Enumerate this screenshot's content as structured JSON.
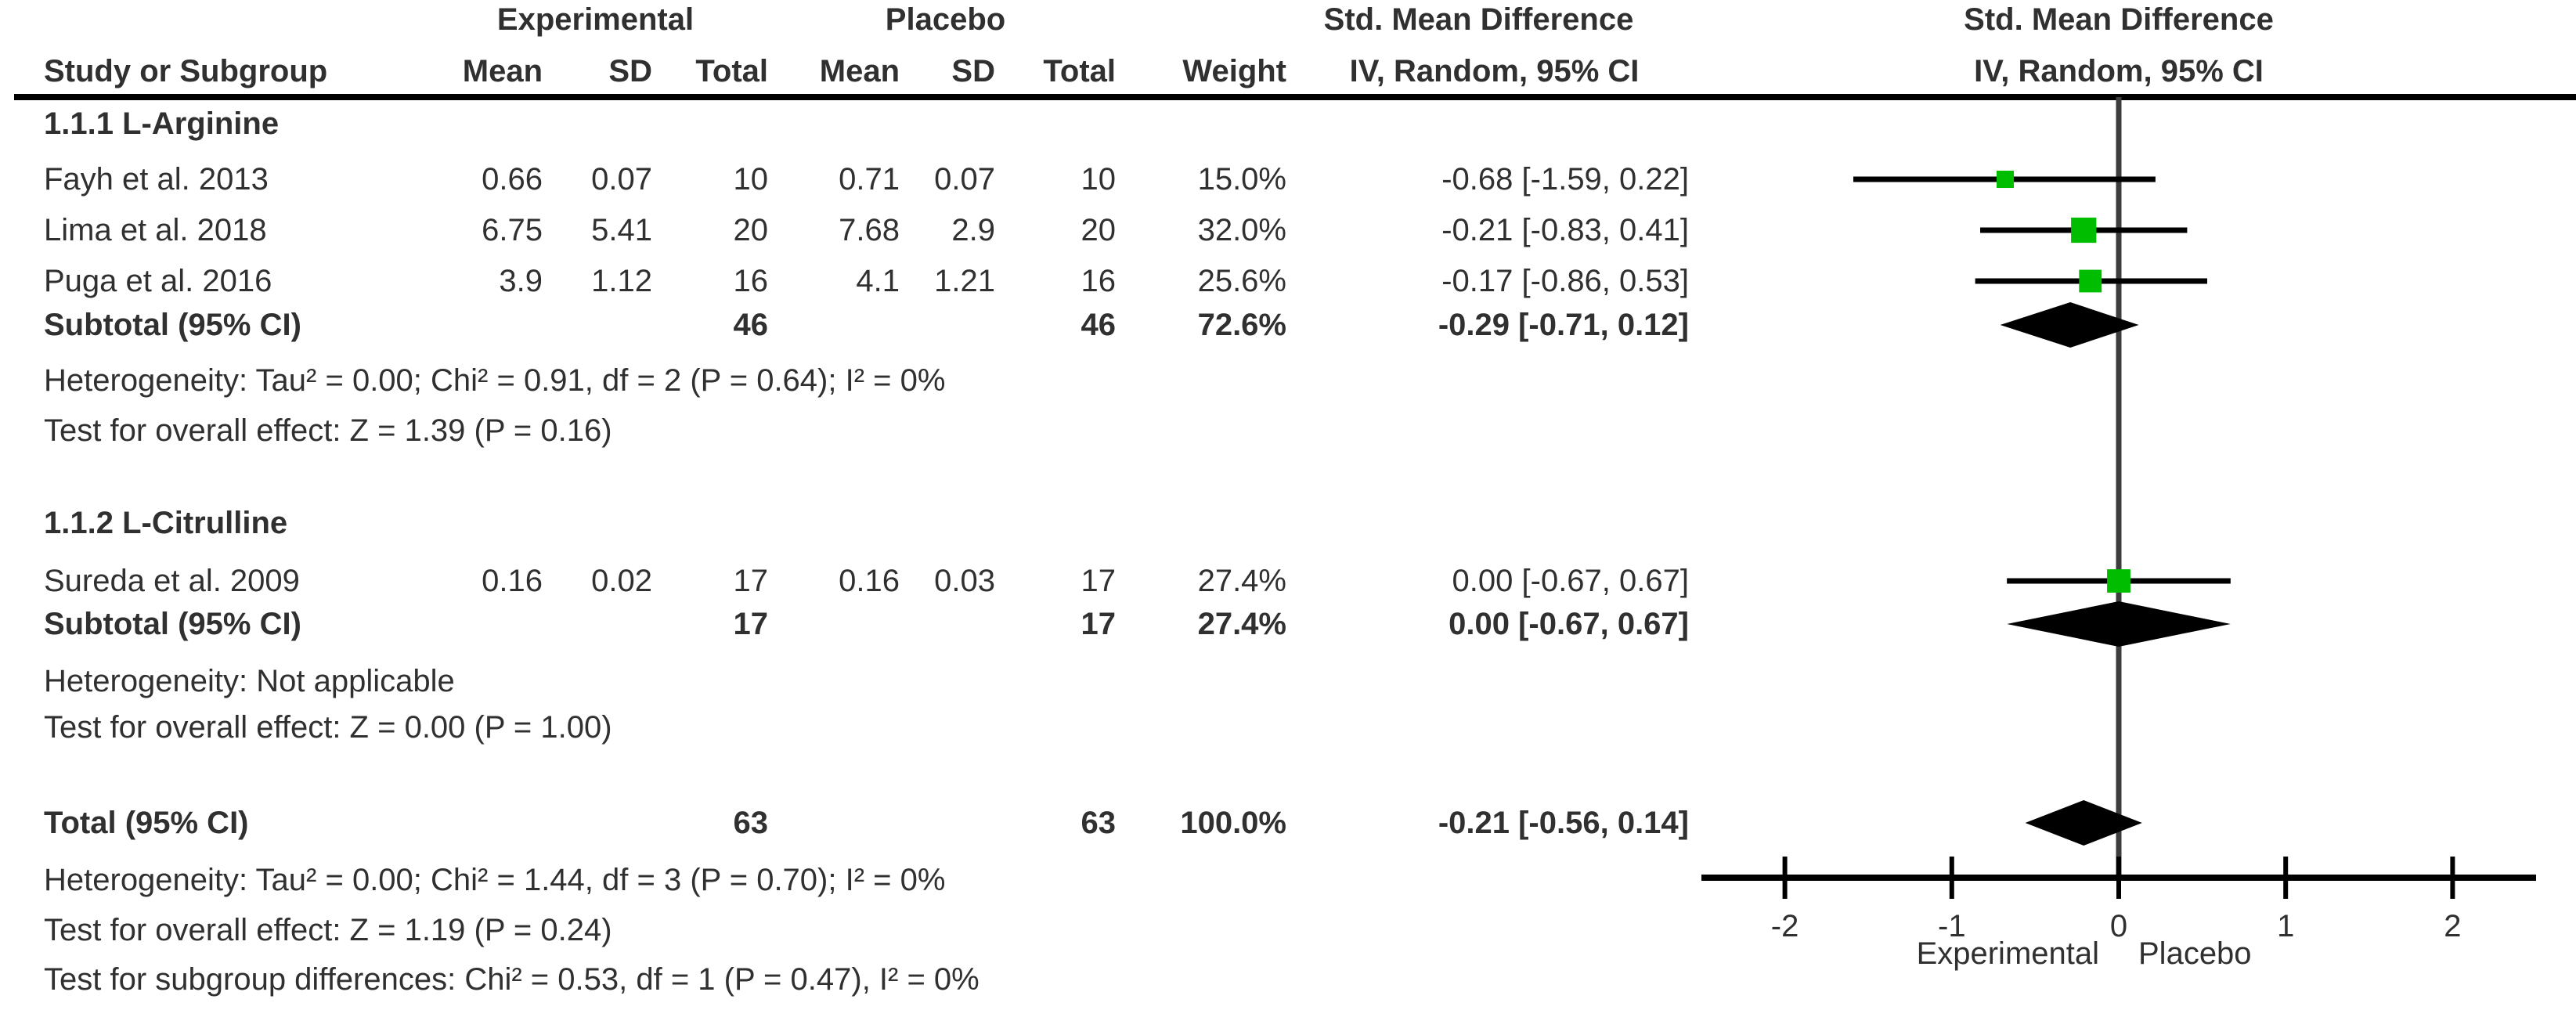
{
  "table": {
    "col_headers": {
      "group_experimental": "Experimental",
      "group_placebo": "Placebo",
      "smd_text_col": "Std. Mean Difference",
      "smd_plot_col": "Std. Mean Difference",
      "study": "Study or Subgroup",
      "mean1": "Mean",
      "sd1": "SD",
      "total1": "Total",
      "mean2": "Mean",
      "sd2": "SD",
      "total2": "Total",
      "weight": "Weight",
      "iv_text_col": "IV, Random, 95% CI",
      "iv_plot_col": "IV, Random, 95% CI"
    },
    "sections": [
      {
        "label": "1.1.1 L-Arginine",
        "studies": [
          {
            "name": "Fayh et al. 2013",
            "mean1": "0.66",
            "sd1": "0.07",
            "total1": "10",
            "mean2": "0.71",
            "sd2": "0.07",
            "total2": "10",
            "weight": "15.0%",
            "ci": "-0.68 [-1.59, 0.22]"
          },
          {
            "name": "Lima et al. 2018",
            "mean1": "6.75",
            "sd1": "5.41",
            "total1": "20",
            "mean2": "7.68",
            "sd2": "2.9",
            "total2": "20",
            "weight": "32.0%",
            "ci": "-0.21 [-0.83, 0.41]"
          },
          {
            "name": "Puga et al. 2016",
            "mean1": "3.9",
            "sd1": "1.12",
            "total1": "16",
            "mean2": "4.1",
            "sd2": "1.21",
            "total2": "16",
            "weight": "25.6%",
            "ci": "-0.17 [-0.86, 0.53]"
          }
        ],
        "subtotal": {
          "label": "Subtotal (95% CI)",
          "total1": "46",
          "total2": "46",
          "weight": "72.6%",
          "ci": "-0.29 [-0.71, 0.12]"
        },
        "heterogeneity": "Heterogeneity: Tau² = 0.00; Chi² = 0.91, df = 2 (P = 0.64); I² = 0%",
        "overall_effect": "Test for overall effect: Z = 1.39 (P = 0.16)"
      },
      {
        "label": "1.1.2 L-Citrulline",
        "studies": [
          {
            "name": "Sureda et al. 2009",
            "mean1": "0.16",
            "sd1": "0.02",
            "total1": "17",
            "mean2": "0.16",
            "sd2": "0.03",
            "total2": "17",
            "weight": "27.4%",
            "ci": "0.00 [-0.67, 0.67]"
          }
        ],
        "subtotal": {
          "label": "Subtotal (95% CI)",
          "total1": "17",
          "total2": "17",
          "weight": "27.4%",
          "ci": "0.00 [-0.67, 0.67]"
        },
        "heterogeneity": "Heterogeneity: Not applicable",
        "overall_effect": "Test for overall effect: Z = 0.00 (P = 1.00)"
      }
    ],
    "total_row": {
      "label": "Total (95% CI)",
      "total1": "63",
      "total2": "63",
      "weight": "100.0%",
      "ci": "-0.21 [-0.56, 0.14]"
    },
    "footnotes": [
      "Heterogeneity: Tau² = 0.00; Chi² = 1.44, df = 3 (P = 0.70); I² = 0%",
      "Test for overall effect: Z = 1.19 (P = 0.24)",
      "Test for subgroup differences: Chi² = 0.53, df = 1 (P = 0.47), I² = 0%"
    ]
  },
  "chart_data": {
    "type": "forest",
    "effect_measure": "Std. Mean Difference, IV, Random, 95% CI",
    "axis": {
      "range": [
        -2.5,
        2.5
      ],
      "ticks": [
        "-2",
        "-1",
        "0",
        "1",
        "2"
      ],
      "tick_values": [
        -2,
        -1,
        0,
        1,
        2
      ],
      "left_label": "Experimental",
      "right_label": "Placebo",
      "zero_line": 0
    },
    "rows": [
      {
        "kind": "study",
        "name": "Fayh et al. 2013",
        "est": -0.68,
        "lo": -1.59,
        "hi": 0.22,
        "weight_pct": 15.0
      },
      {
        "kind": "study",
        "name": "Lima et al. 2018",
        "est": -0.21,
        "lo": -0.83,
        "hi": 0.41,
        "weight_pct": 32.0
      },
      {
        "kind": "study",
        "name": "Puga et al. 2016",
        "est": -0.17,
        "lo": -0.86,
        "hi": 0.53,
        "weight_pct": 25.6
      },
      {
        "kind": "pooled",
        "name": "Subtotal L-Arginine",
        "est": -0.29,
        "lo": -0.71,
        "hi": 0.12
      },
      {
        "kind": "study",
        "name": "Sureda et al. 2009",
        "est": 0.0,
        "lo": -0.67,
        "hi": 0.67,
        "weight_pct": 27.4
      },
      {
        "kind": "pooled",
        "name": "Subtotal L-Citrulline",
        "est": 0.0,
        "lo": -0.67,
        "hi": 0.67
      },
      {
        "kind": "pooled",
        "name": "Total",
        "est": -0.21,
        "lo": -0.56,
        "hi": 0.14
      }
    ],
    "colors": {
      "square": "#00bd00",
      "diamond": "#000000",
      "ci_line": "#000000",
      "zero_line": "#3d3d3d",
      "axis": "#000000",
      "text": "#303030"
    }
  }
}
